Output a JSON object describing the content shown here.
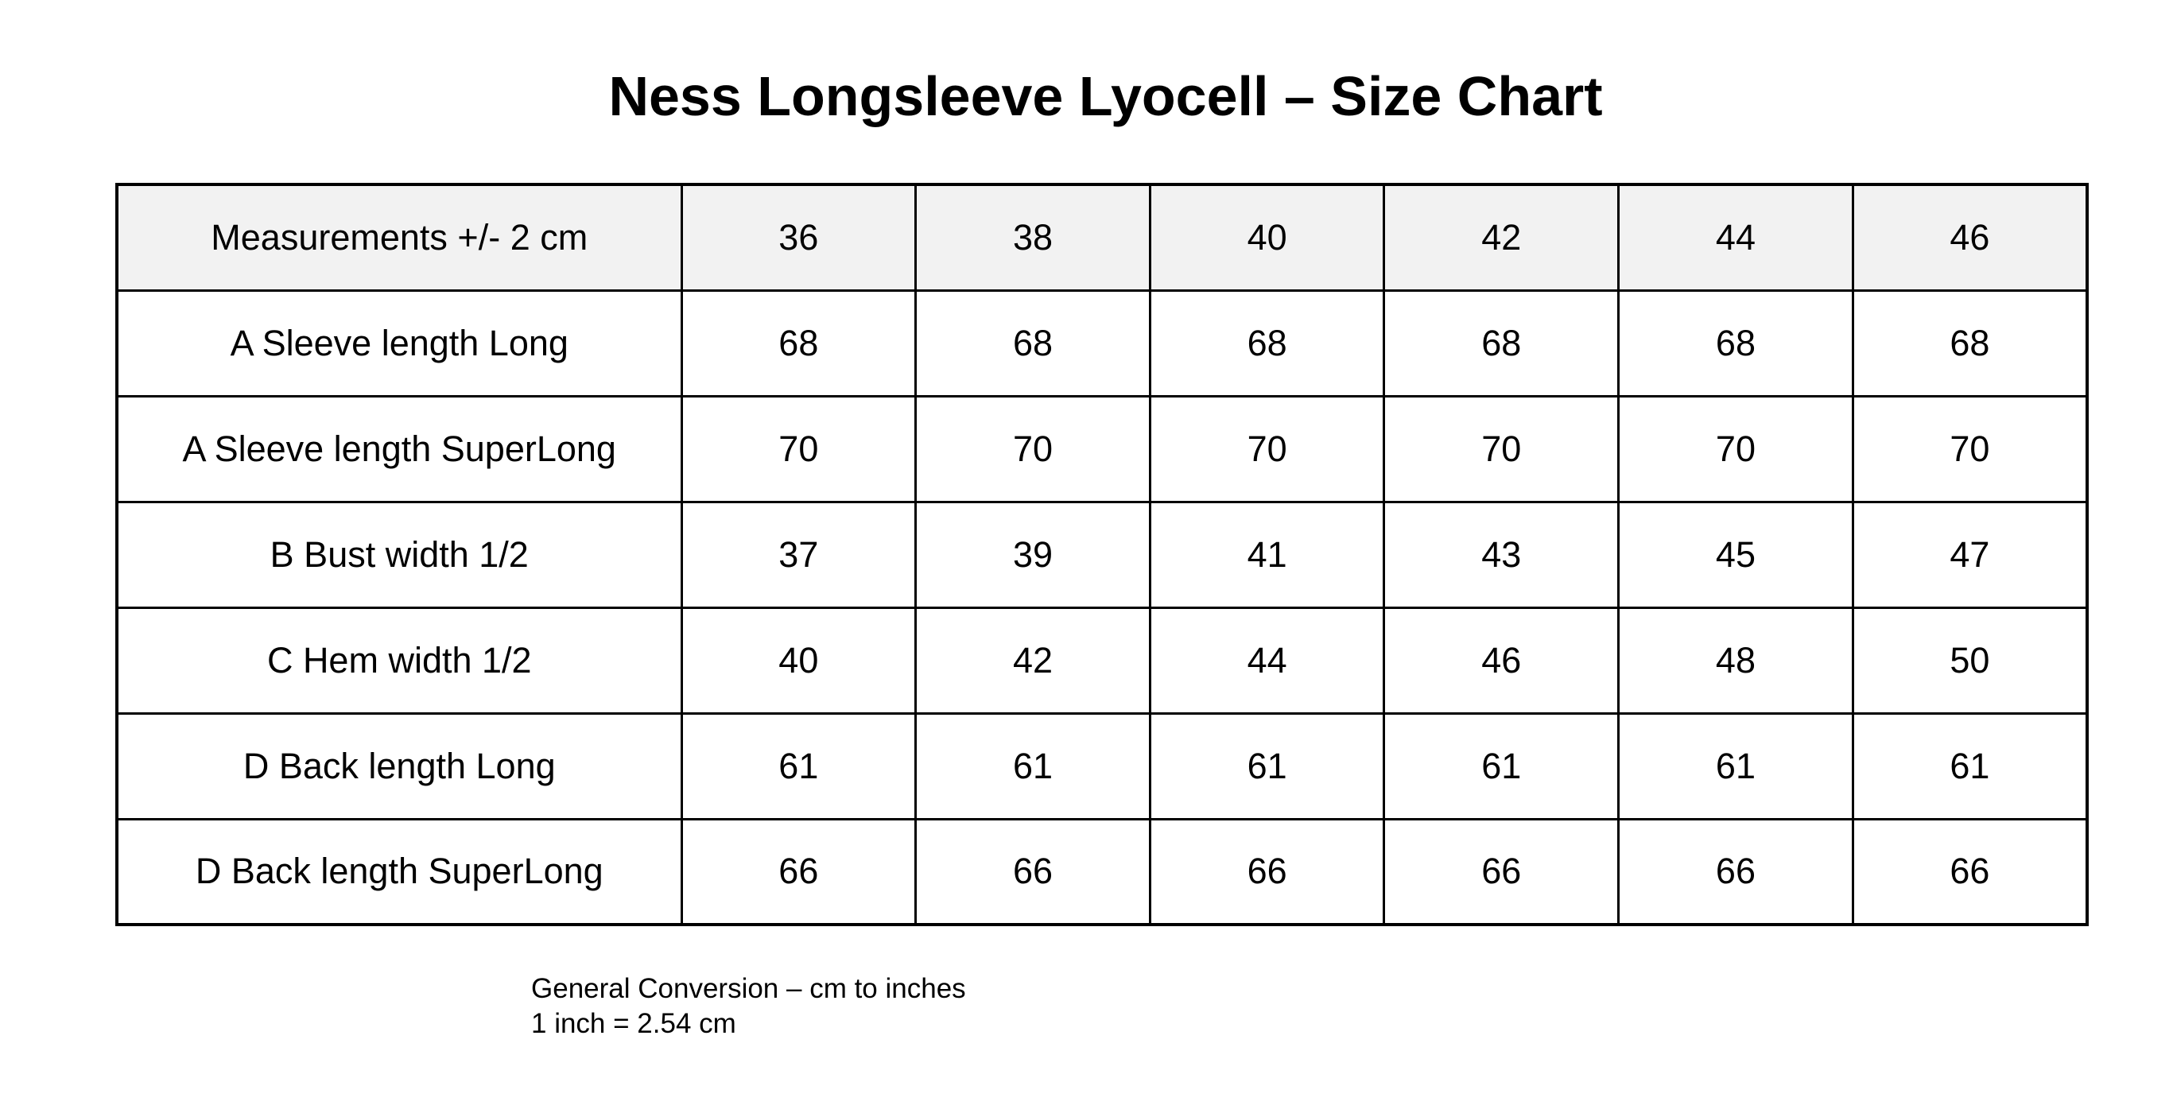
{
  "page": {
    "title": "Ness Longsleeve Lyocell – Size Chart"
  },
  "colors": {
    "page_bg": "#ffffff",
    "text": "#000000",
    "table_border": "#000000",
    "header_row_bg": "#f2f2f2"
  },
  "table": {
    "header": {
      "label": "Measurements +/- 2 cm",
      "sizes": [
        "36",
        "38",
        "40",
        "42",
        "44",
        "46"
      ]
    },
    "rows": [
      {
        "label": "A Sleeve length Long",
        "values": [
          "68",
          "68",
          "68",
          "68",
          "68",
          "68"
        ]
      },
      {
        "label": "A Sleeve length SuperLong",
        "values": [
          "70",
          "70",
          "70",
          "70",
          "70",
          "70"
        ]
      },
      {
        "label": "B Bust width 1/2",
        "values": [
          "37",
          "39",
          "41",
          "43",
          "45",
          "47"
        ]
      },
      {
        "label": "C Hem width 1/2",
        "values": [
          "40",
          "42",
          "44",
          "46",
          "48",
          "50"
        ]
      },
      {
        "label": "D Back length Long",
        "values": [
          "61",
          "61",
          "61",
          "61",
          "61",
          "61"
        ]
      },
      {
        "label": "D Back length SuperLong",
        "values": [
          "66",
          "66",
          "66",
          "66",
          "66",
          "66"
        ]
      }
    ]
  },
  "footer": {
    "line1": "General Conversion – cm to inches",
    "line2": "1 inch = 2.54 cm"
  }
}
